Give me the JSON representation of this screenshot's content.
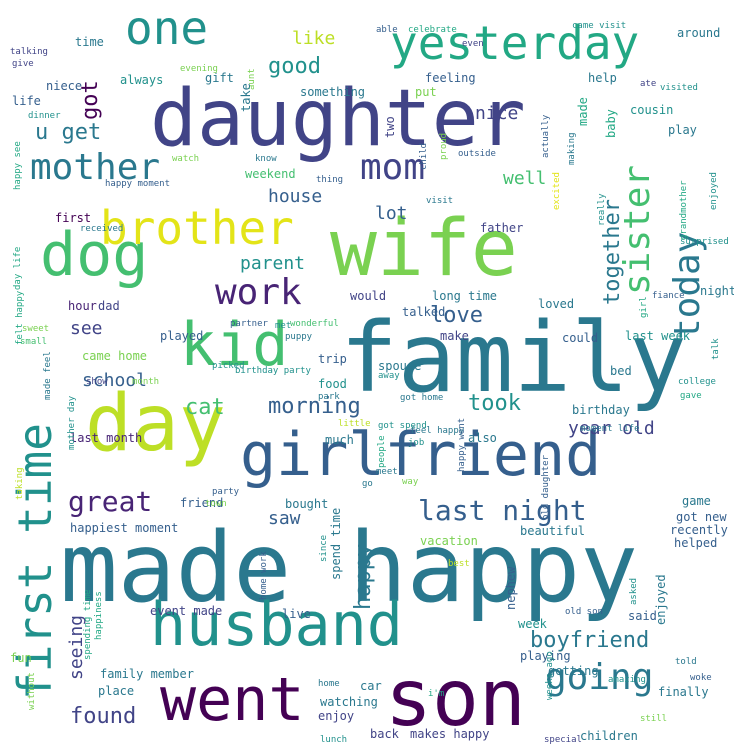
{
  "words": [
    "made happy",
    "family",
    "daughter",
    "husband",
    "wife",
    "girlfriend",
    "son",
    "day",
    "went",
    "dog",
    "first time",
    "yesterday",
    "one",
    "kid",
    "mother",
    "brother",
    "mom",
    "sister",
    "today",
    "going",
    "work",
    "last night",
    "boyfriend",
    "great",
    "took",
    "morning",
    "love",
    "together",
    "cat",
    "found",
    "good",
    "got",
    "u get",
    "like",
    "house",
    "parent",
    "school",
    "see",
    "seeing",
    "saw",
    "year old",
    "happy",
    "well",
    "nice",
    "lot",
    "time",
    "talking",
    "give",
    "niece",
    "life",
    "always",
    "gift",
    "evening",
    "something",
    "aunt",
    "take",
    "two",
    "put",
    "feeling",
    "help",
    "made",
    "baby",
    "ate",
    "visited",
    "cousin",
    "play",
    "around",
    "came visit",
    "celebrate",
    "able",
    "even",
    "really",
    "happy moment",
    "weekend",
    "first",
    "father",
    "felt happy",
    "last month",
    "happiest moment",
    "came home",
    "hour",
    "dad",
    "long time",
    "make",
    "last week",
    "talk",
    "would",
    "bed",
    "college",
    "gave",
    "birthday",
    "food",
    "birthday party",
    "park",
    "got home",
    "also",
    "feel happy",
    "friend",
    "family member",
    "place",
    "event made",
    "live",
    "spend time",
    "nephew",
    "playing",
    "said",
    "enjoyed",
    "week",
    "old son",
    "getting",
    "amazing",
    "finally",
    "told",
    "woke",
    "children",
    "still",
    "lunch",
    "back",
    "makes happy",
    "enjoy",
    "watching",
    "car",
    "home",
    "happiness",
    "spending time",
    "fun",
    "without",
    "watch",
    "know",
    "thing",
    "child",
    "outside",
    "visit",
    "surprised",
    "grandmother",
    "enjoyed",
    "excited",
    "making",
    "actually",
    "proud",
    "received",
    "dinner",
    "happy see",
    "sweet",
    "small",
    "day life",
    "played",
    "partner",
    "met",
    "wonderful",
    "puppy",
    "trip",
    "spouse",
    "away",
    "talked",
    "loved",
    "could",
    "fiance",
    "girl",
    "night",
    "game",
    "recently",
    "got new",
    "helped",
    "asked",
    "beautiful",
    "old daughter",
    "mother day",
    "made feel",
    "month",
    "show",
    "picked",
    "little",
    "much",
    "job",
    "people",
    "happy went",
    "meet",
    "way",
    "vacation",
    "since",
    "bought",
    "party",
    "town",
    "home work",
    "moment life",
    "got spend",
    "go",
    "best",
    "taking",
    "weeks ago",
    "special",
    "i'm"
  ]
}
